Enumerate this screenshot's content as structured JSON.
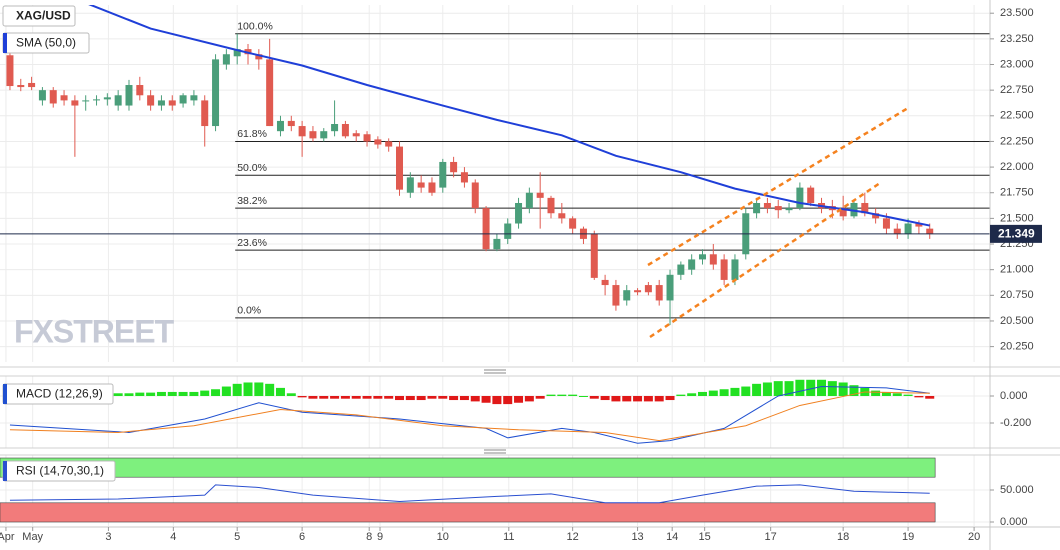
{
  "chart_data": [
    {
      "type": "candlestick",
      "title": "XAG/USD",
      "watermark": "FXSTREET",
      "up_color": "#4a9e7a",
      "down_color": "#e05a50",
      "open": [
        23.09,
        22.8,
        22.82,
        22.65,
        22.75,
        22.7,
        22.65,
        22.64,
        22.65,
        22.66,
        22.6,
        22.6,
        22.8,
        22.7,
        22.6,
        22.65,
        22.62,
        22.65,
        22.65,
        22.4,
        23.0,
        23.08,
        23.15,
        23.1,
        23.05,
        22.35,
        22.45,
        22.4,
        22.35,
        22.28,
        22.35,
        22.42,
        22.33,
        22.32,
        22.27,
        22.25,
        22.2,
        21.75,
        21.85,
        21.85,
        21.8,
        22.05,
        21.95,
        21.85,
        21.6,
        21.2,
        21.3,
        21.45,
        21.6,
        21.75,
        21.7,
        21.55,
        21.5,
        21.4,
        21.35,
        20.9,
        20.85,
        20.7,
        20.8,
        20.85,
        20.85,
        20.7,
        20.95,
        21.0,
        21.1,
        21.15,
        21.1,
        20.9,
        21.15,
        21.55,
        21.65,
        21.62,
        21.58,
        21.6,
        21.8,
        21.65,
        21.62,
        21.6,
        21.52,
        21.65,
        21.55,
        21.5,
        21.4,
        21.35,
        21.45,
        21.4
      ],
      "high": [
        23.3,
        22.86,
        22.88,
        22.78,
        22.78,
        22.75,
        22.7,
        22.7,
        22.7,
        22.72,
        22.75,
        22.85,
        22.88,
        22.75,
        22.7,
        22.7,
        22.72,
        22.75,
        22.7,
        23.1,
        23.15,
        23.3,
        23.2,
        23.15,
        23.25,
        22.5,
        22.5,
        22.45,
        22.4,
        22.38,
        22.65,
        22.45,
        22.36,
        22.35,
        22.3,
        22.28,
        22.25,
        21.95,
        21.92,
        21.9,
        22.08,
        22.1,
        22.0,
        21.88,
        21.62,
        21.35,
        21.5,
        21.7,
        21.8,
        21.95,
        21.72,
        21.65,
        21.52,
        21.42,
        21.38,
        20.95,
        20.9,
        20.85,
        20.82,
        20.88,
        20.9,
        21.0,
        21.08,
        21.15,
        21.2,
        21.25,
        21.15,
        21.15,
        21.6,
        21.7,
        21.7,
        21.68,
        21.65,
        21.85,
        21.82,
        21.7,
        21.68,
        21.72,
        21.68,
        21.75,
        21.6,
        21.55,
        21.45,
        21.5,
        21.48,
        21.45
      ],
      "low": [
        22.75,
        22.74,
        22.75,
        22.6,
        22.58,
        22.6,
        22.1,
        22.55,
        22.6,
        22.6,
        22.55,
        22.55,
        22.65,
        22.55,
        22.55,
        22.55,
        22.58,
        22.6,
        22.2,
        22.35,
        22.95,
        23.0,
        23.0,
        22.95,
        22.4,
        22.3,
        22.35,
        22.1,
        22.25,
        22.25,
        22.3,
        22.28,
        22.25,
        22.2,
        22.18,
        22.15,
        21.72,
        21.7,
        21.75,
        21.72,
        21.75,
        21.9,
        21.8,
        21.55,
        21.18,
        21.18,
        21.25,
        21.4,
        21.55,
        21.4,
        21.5,
        21.45,
        21.35,
        21.25,
        20.9,
        20.75,
        20.6,
        20.65,
        20.75,
        20.75,
        20.65,
        20.46,
        20.9,
        20.95,
        21.05,
        21.0,
        20.85,
        20.85,
        21.1,
        21.5,
        21.55,
        21.5,
        21.55,
        21.58,
        21.62,
        21.55,
        21.5,
        21.48,
        21.5,
        21.52,
        21.45,
        21.35,
        21.3,
        21.3,
        21.35,
        21.3
      ],
      "close": [
        22.79,
        22.78,
        22.78,
        22.75,
        22.62,
        22.65,
        22.6,
        22.65,
        22.66,
        22.68,
        22.7,
        22.8,
        22.7,
        22.6,
        22.65,
        22.6,
        22.7,
        22.7,
        22.4,
        23.05,
        23.1,
        23.15,
        23.1,
        23.05,
        22.4,
        22.45,
        22.4,
        22.3,
        22.28,
        22.35,
        22.42,
        22.3,
        22.3,
        22.25,
        22.22,
        22.2,
        21.78,
        21.9,
        21.8,
        21.75,
        22.05,
        21.95,
        21.85,
        21.6,
        21.2,
        21.3,
        21.45,
        21.65,
        21.75,
        21.7,
        21.55,
        21.5,
        21.4,
        21.3,
        20.92,
        20.85,
        20.65,
        20.8,
        20.78,
        20.78,
        20.7,
        20.95,
        21.05,
        21.1,
        21.15,
        21.05,
        20.9,
        21.1,
        21.55,
        21.65,
        21.6,
        21.58,
        21.6,
        21.8,
        21.65,
        21.6,
        21.58,
        21.52,
        21.65,
        21.55,
        21.5,
        21.4,
        21.35,
        21.45,
        21.42,
        21.349
      ],
      "overlays": [
        {
          "name": "SMA (50,0)",
          "color": "#1f3fd8",
          "x": [
            7,
            13,
            21,
            27,
            33,
            40,
            45,
            51,
            56,
            62,
            67,
            73,
            79,
            85
          ],
          "values": [
            23.6,
            23.35,
            23.14,
            22.99,
            22.8,
            22.6,
            22.46,
            22.31,
            22.11,
            21.95,
            21.79,
            21.65,
            21.56,
            21.43
          ]
        }
      ],
      "fib_levels": [
        {
          "value": 23.3,
          "label": "100.0%"
        },
        {
          "value": 22.25,
          "label": "61.8%"
        },
        {
          "value": 21.92,
          "label": "50.0%"
        },
        {
          "value": 21.6,
          "label": "38.2%"
        },
        {
          "value": 21.19,
          "label": "23.6%"
        },
        {
          "value": 20.53,
          "label": "0.0%"
        }
      ],
      "last_price": 21.349,
      "ylim": [
        20.1,
        23.58
      ],
      "yticks": [
        {
          "value": 23.5,
          "label": "23.500"
        },
        {
          "value": 23.25,
          "label": "23.250"
        },
        {
          "value": 23,
          "label": "23.000"
        },
        {
          "value": 22.75,
          "label": "22.750"
        },
        {
          "value": 22.5,
          "label": "22.500"
        },
        {
          "value": 22.25,
          "label": "22.250"
        },
        {
          "value": 22,
          "label": "22.000"
        },
        {
          "value": 21.75,
          "label": "21.750"
        },
        {
          "value": 21.5,
          "label": "21.500"
        },
        {
          "value": 21.25,
          "label": "21.250"
        },
        {
          "value": 21,
          "label": "21.000"
        },
        {
          "value": 20.75,
          "label": "20.750"
        },
        {
          "value": 20.5,
          "label": "20.500"
        },
        {
          "value": 20.25,
          "label": "20.250"
        }
      ],
      "grid": true
    },
    {
      "type": "combo",
      "title": "MACD (12,26,9)",
      "histogram": {
        "up_color": "#22e022",
        "down_color": "#e01818",
        "values": [
          0.01,
          0.01,
          0.015,
          0.015,
          0.02,
          0.02,
          0.02,
          0.02,
          0.02,
          0.02,
          0.02,
          0.02,
          0.025,
          0.025,
          0.03,
          0.03,
          0.03,
          0.03,
          0.04,
          0.05,
          0.07,
          0.09,
          0.1,
          0.1,
          0.09,
          0.06,
          0.02,
          -0.01,
          -0.02,
          -0.02,
          -0.02,
          -0.02,
          -0.02,
          -0.02,
          -0.02,
          -0.02,
          -0.03,
          -0.03,
          -0.03,
          -0.02,
          -0.02,
          -0.03,
          -0.03,
          -0.04,
          -0.05,
          -0.06,
          -0.06,
          -0.05,
          -0.04,
          -0.02,
          0.01,
          0.01,
          0.01,
          0.0,
          -0.02,
          -0.03,
          -0.04,
          -0.04,
          -0.04,
          -0.04,
          -0.04,
          -0.03,
          0.01,
          0.02,
          0.03,
          0.04,
          0.05,
          0.06,
          0.07,
          0.09,
          0.1,
          0.11,
          0.11,
          0.12,
          0.12,
          0.12,
          0.11,
          0.1,
          0.08,
          0.06,
          0.04,
          0.03,
          0.02,
          0.01,
          -0.01,
          -0.02
        ]
      },
      "lines": [
        {
          "color": "#2050d0",
          "x": [
            0,
            11,
            18,
            23,
            27,
            36,
            44,
            46,
            51,
            54,
            58,
            61,
            66,
            71,
            75,
            81,
            85
          ],
          "values": [
            -0.215,
            -0.27,
            -0.17,
            -0.05,
            -0.12,
            -0.17,
            -0.24,
            -0.31,
            -0.24,
            -0.27,
            -0.35,
            -0.33,
            -0.24,
            0.0,
            0.07,
            0.06,
            0.02
          ]
        },
        {
          "color": "#f08020",
          "x": [
            0,
            10,
            17,
            25,
            32,
            40,
            47,
            55,
            60,
            68,
            73,
            79,
            85
          ],
          "values": [
            -0.25,
            -0.27,
            -0.22,
            -0.1,
            -0.14,
            -0.22,
            -0.25,
            -0.27,
            -0.33,
            -0.22,
            -0.07,
            0.03,
            0.02
          ]
        }
      ],
      "ylim": [
        -0.385,
        0.148
      ],
      "yticks": [
        {
          "value": 0,
          "label": "0.000"
        },
        {
          "value": -0.2,
          "label": "-0.200"
        }
      ],
      "grid": true
    },
    {
      "type": "line",
      "title": "RSI (14,70,30,1)",
      "color": "#2a4fd0",
      "x": [
        0,
        10,
        18,
        19,
        23,
        28,
        36,
        45,
        50,
        55,
        60,
        64,
        69,
        73,
        78,
        85
      ],
      "values": [
        34,
        36,
        42,
        58,
        54,
        42,
        32,
        40,
        44,
        30,
        30,
        42,
        56,
        58,
        48,
        45
      ],
      "bands": [
        {
          "from": 70,
          "to": 100,
          "color": "#7ef07e"
        },
        {
          "from": 0,
          "to": 30,
          "color": "#f27b7b"
        }
      ],
      "ylim": [
        -6.25,
        104.7
      ],
      "yticks": [
        {
          "value": 50,
          "label": "50.000"
        },
        {
          "value": 0,
          "label": "0.000"
        }
      ],
      "xlim": [
        -0.92,
        90.57
      ],
      "xticks": [
        {
          "value": -0.37,
          "label": "Apr"
        },
        {
          "value": 2.1,
          "label": "May"
        },
        {
          "value": 9.1,
          "label": "3"
        },
        {
          "value": 15.1,
          "label": "4"
        },
        {
          "value": 21,
          "label": "5"
        },
        {
          "value": 27,
          "label": "6"
        },
        {
          "value": 33.2,
          "label": "8"
        },
        {
          "value": 34.2,
          "label": "9"
        },
        {
          "value": 40,
          "label": "10"
        },
        {
          "value": 46.1,
          "label": "11"
        },
        {
          "value": 52,
          "label": "12"
        },
        {
          "value": 58,
          "label": "13"
        },
        {
          "value": 61.2,
          "label": "14"
        },
        {
          "value": 64.2,
          "label": "15"
        },
        {
          "value": 70.3,
          "label": "17"
        },
        {
          "value": 77,
          "label": "18"
        },
        {
          "value": 83,
          "label": "19"
        },
        {
          "value": 89.1,
          "label": "20"
        }
      ],
      "grid": true
    }
  ]
}
